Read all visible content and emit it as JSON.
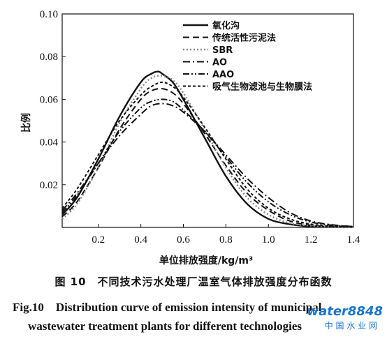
{
  "chart_data": {
    "type": "line",
    "title": "",
    "xlabel": "单位排放强度/kg/m³",
    "ylabel": "比例",
    "xlim": [
      0.03,
      1.4
    ],
    "ylim": [
      0.0,
      0.1
    ],
    "xticks": [
      "0.2",
      "0.4",
      "0.6",
      "0.8",
      "1.0",
      "1.2",
      "1.4"
    ],
    "xtick_values": [
      0.2,
      0.4,
      0.6,
      0.8,
      1.0,
      1.2,
      1.4
    ],
    "yticks": [
      "0.02",
      "0.04",
      "0.06",
      "0.08",
      "0.10"
    ],
    "ytick_values": [
      0.02,
      0.04,
      0.06,
      0.08,
      0.1
    ],
    "grid": false,
    "legend_position": "top-right",
    "series": [
      {
        "name": "氧化沟",
        "style": "solid",
        "color": "#111111",
        "x": [
          0.03,
          0.1,
          0.2,
          0.3,
          0.4,
          0.45,
          0.48,
          0.5,
          0.55,
          0.6,
          0.7,
          0.8,
          0.9,
          1.0,
          1.1,
          1.2,
          1.3,
          1.4
        ],
        "y": [
          0.006,
          0.014,
          0.032,
          0.052,
          0.068,
          0.072,
          0.073,
          0.072,
          0.068,
          0.06,
          0.042,
          0.024,
          0.011,
          0.004,
          0.0015,
          0.0005,
          0.0003,
          0.0002
        ]
      },
      {
        "name": "传统活性污泥法",
        "style": "dashed",
        "color": "#111111",
        "x": [
          0.03,
          0.1,
          0.2,
          0.3,
          0.4,
          0.45,
          0.5,
          0.55,
          0.6,
          0.7,
          0.8,
          0.9,
          1.0,
          1.1,
          1.2,
          1.3,
          1.4
        ],
        "y": [
          0.005,
          0.012,
          0.028,
          0.046,
          0.06,
          0.064,
          0.065,
          0.063,
          0.058,
          0.044,
          0.029,
          0.016,
          0.008,
          0.003,
          0.001,
          0.0005,
          0.0003
        ]
      },
      {
        "name": "SBR",
        "style": "dotted",
        "color": "#888888",
        "x": [
          0.03,
          0.1,
          0.2,
          0.3,
          0.4,
          0.45,
          0.5,
          0.55,
          0.6,
          0.7,
          0.8,
          0.9,
          1.0,
          1.1,
          1.2,
          1.3,
          1.4
        ],
        "y": [
          0.004,
          0.011,
          0.028,
          0.049,
          0.065,
          0.07,
          0.071,
          0.069,
          0.063,
          0.046,
          0.028,
          0.014,
          0.006,
          0.002,
          0.0008,
          0.0004,
          0.0002
        ]
      },
      {
        "name": "AO",
        "style": "dashdot",
        "color": "#111111",
        "x": [
          0.03,
          0.1,
          0.2,
          0.3,
          0.4,
          0.45,
          0.5,
          0.55,
          0.6,
          0.7,
          0.8,
          0.9,
          1.0,
          1.1,
          1.2,
          1.3,
          1.4
        ],
        "y": [
          0.008,
          0.016,
          0.03,
          0.043,
          0.053,
          0.057,
          0.058,
          0.057,
          0.054,
          0.045,
          0.034,
          0.023,
          0.014,
          0.007,
          0.003,
          0.0012,
          0.0004
        ]
      },
      {
        "name": "AAO",
        "style": "dashdotdot",
        "color": "#111111",
        "x": [
          0.03,
          0.1,
          0.2,
          0.3,
          0.4,
          0.45,
          0.5,
          0.55,
          0.6,
          0.7,
          0.8,
          0.9,
          1.0,
          1.1,
          1.2,
          1.3,
          1.4
        ],
        "y": [
          0.007,
          0.015,
          0.03,
          0.045,
          0.056,
          0.059,
          0.06,
          0.059,
          0.055,
          0.045,
          0.033,
          0.021,
          0.012,
          0.006,
          0.0025,
          0.001,
          0.0004
        ]
      },
      {
        "name": "吸气生物滤池与生物膜法",
        "style": "shortdash",
        "color": "#111111",
        "x": [
          0.03,
          0.1,
          0.2,
          0.3,
          0.4,
          0.45,
          0.5,
          0.55,
          0.6,
          0.7,
          0.8,
          0.9,
          1.0,
          1.1,
          1.2,
          1.3,
          1.4
        ],
        "y": [
          0.009,
          0.018,
          0.034,
          0.05,
          0.062,
          0.066,
          0.068,
          0.066,
          0.061,
          0.047,
          0.032,
          0.018,
          0.009,
          0.004,
          0.0015,
          0.0006,
          0.0003
        ]
      }
    ]
  },
  "caption": {
    "cn": "图 10　不同技术污水处理厂温室气体排放强度分布函数",
    "en_line1": "Fig.10　Distribution curve of emission intensity of municipal",
    "en_line2": "wastewater treatment plants for different technologies"
  },
  "watermark": {
    "text": "water8848",
    "sub": "中 国 水 业 网"
  }
}
